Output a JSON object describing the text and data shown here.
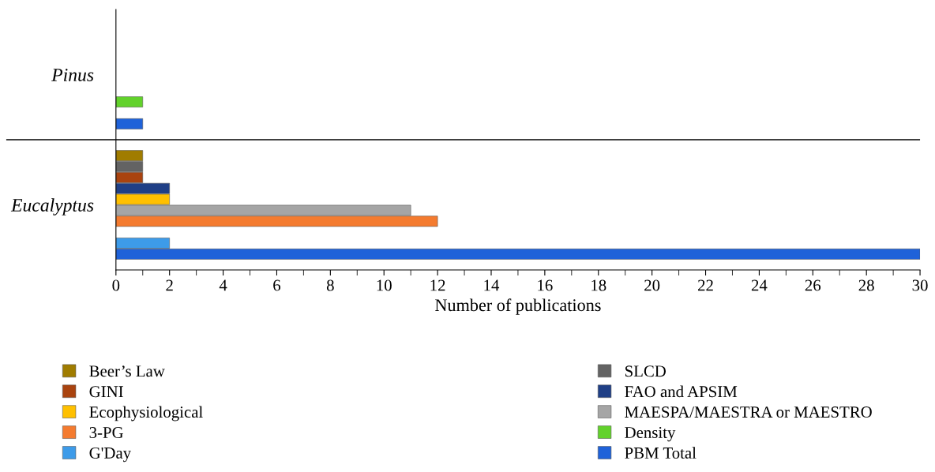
{
  "chart_data": {
    "type": "bar",
    "orientation": "horizontal",
    "categories": [
      "Pinus",
      "Eucalyptus"
    ],
    "xlabel": "Number of publications",
    "xlim": [
      0,
      30
    ],
    "xticks": [
      0,
      2,
      4,
      6,
      8,
      10,
      12,
      14,
      16,
      18,
      20,
      22,
      24,
      26,
      28,
      30
    ],
    "grid": false,
    "legend": "bottom",
    "series": [
      {
        "name": "Beer’s Law",
        "color": "#a07c00",
        "values": [
          null,
          1
        ]
      },
      {
        "name": "SLCD",
        "color": "#636363",
        "values": [
          null,
          1
        ]
      },
      {
        "name": "GINI",
        "color": "#a9430f",
        "values": [
          null,
          1
        ]
      },
      {
        "name": "FAO and APSIM",
        "color": "#1f3f86",
        "values": [
          null,
          2
        ]
      },
      {
        "name": "Ecophysiological",
        "color": "#ffc000",
        "values": [
          null,
          2
        ]
      },
      {
        "name": "MAESPA/MAESTRA or MAESTRO",
        "color": "#a5a5a5",
        "values": [
          null,
          11
        ]
      },
      {
        "name": "3-PG",
        "color": "#f47b2f",
        "values": [
          null,
          12
        ]
      },
      {
        "name": "Density",
        "color": "#62d22b",
        "values": [
          1,
          null
        ]
      },
      {
        "name": "G'Day",
        "color": "#3d9be9",
        "values": [
          null,
          2
        ]
      },
      {
        "name": "PBM Total",
        "color": "#1f62d9",
        "values": [
          1,
          30
        ]
      }
    ]
  }
}
